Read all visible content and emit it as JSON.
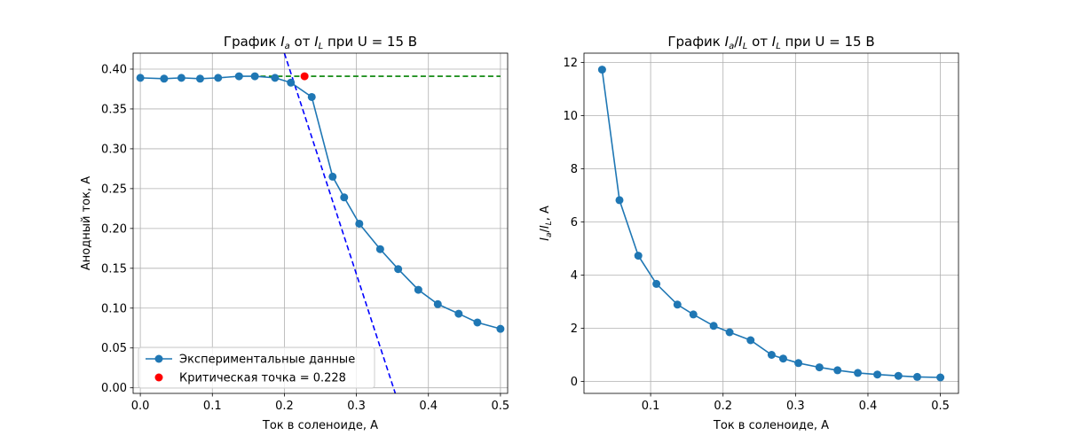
{
  "chart_data": [
    {
      "type": "line",
      "title": "График I_a от I_L при U = 15 В",
      "title_parts": {
        "before": "График ",
        "v1": "I",
        "s1": "a",
        "mid": " от ",
        "v2": "I",
        "s2": "L",
        "after": " при U = 15 В"
      },
      "xlabel": "Ток в соленоиде, А",
      "ylabel": "Анодный ток, А",
      "xlim": [
        -0.01,
        0.51
      ],
      "ylim": [
        -0.007,
        0.42
      ],
      "xticks": [
        0.0,
        0.1,
        0.2,
        0.3,
        0.4,
        0.5
      ],
      "xtick_labels": [
        "0.0",
        "0.1",
        "0.2",
        "0.3",
        "0.4",
        "0.5"
      ],
      "yticks": [
        0.0,
        0.05,
        0.1,
        0.15,
        0.2,
        0.25,
        0.3,
        0.35,
        0.4
      ],
      "ytick_labels": [
        "0.00",
        "0.05",
        "0.10",
        "0.15",
        "0.20",
        "0.25",
        "0.30",
        "0.35",
        "0.40"
      ],
      "grid": true,
      "legend_position": "lower-left",
      "series": [
        {
          "name": "Экспериментальные данные",
          "color": "#1f77b4",
          "marker": "circle",
          "x": [
            0.0,
            0.033,
            0.057,
            0.083,
            0.108,
            0.137,
            0.159,
            0.187,
            0.209,
            0.238,
            0.267,
            0.283,
            0.304,
            0.333,
            0.358,
            0.386,
            0.413,
            0.442,
            0.468,
            0.5
          ],
          "y": [
            0.389,
            0.388,
            0.389,
            0.388,
            0.389,
            0.391,
            0.391,
            0.389,
            0.383,
            0.365,
            0.265,
            0.239,
            0.206,
            0.174,
            0.149,
            0.123,
            0.105,
            0.093,
            0.082,
            0.074
          ]
        }
      ],
      "reference_lines": [
        {
          "style": "dashed",
          "color": "#008000",
          "x": [
            0.155,
            0.5
          ],
          "y": [
            0.391,
            0.391
          ]
        },
        {
          "style": "dashed",
          "color": "#0000ff",
          "x": [
            0.2,
            0.354
          ],
          "y": [
            0.42,
            -0.007
          ]
        }
      ],
      "highlight_point": {
        "label": "Критическая точка = 0.228",
        "x": 0.228,
        "y": 0.391,
        "color": "#ff0000"
      }
    },
    {
      "type": "line",
      "title": "График I_a/I_L от I_L при U = 15 В",
      "title_parts": {
        "before": "График ",
        "v1": "I",
        "s1": "a",
        "slash": "/",
        "v1b": "I",
        "s1b": "L",
        "mid": " от ",
        "v2": "I",
        "s2": "L",
        "after": " при U = 15 В"
      },
      "xlabel": "Ток в соленоиде, А",
      "ylabel": "I_a/I_L, А",
      "xlim": [
        0.008,
        0.525
      ],
      "ylim": [
        -0.45,
        12.35
      ],
      "xticks": [
        0.1,
        0.2,
        0.3,
        0.4,
        0.5
      ],
      "xtick_labels": [
        "0.1",
        "0.2",
        "0.3",
        "0.4",
        "0.5"
      ],
      "yticks": [
        0,
        2,
        4,
        6,
        8,
        10,
        12
      ],
      "ytick_labels": [
        "0",
        "2",
        "4",
        "6",
        "8",
        "10",
        "12"
      ],
      "grid": true,
      "series": [
        {
          "color": "#1f77b4",
          "marker": "circle",
          "x": [
            0.033,
            0.057,
            0.083,
            0.108,
            0.137,
            0.159,
            0.187,
            0.209,
            0.238,
            0.267,
            0.283,
            0.304,
            0.333,
            0.358,
            0.386,
            0.413,
            0.442,
            0.468,
            0.5
          ],
          "y": [
            11.73,
            6.82,
            4.73,
            3.67,
            2.89,
            2.52,
            2.09,
            1.85,
            1.55,
            1.0,
            0.86,
            0.69,
            0.53,
            0.42,
            0.32,
            0.26,
            0.21,
            0.17,
            0.15
          ]
        }
      ]
    }
  ]
}
